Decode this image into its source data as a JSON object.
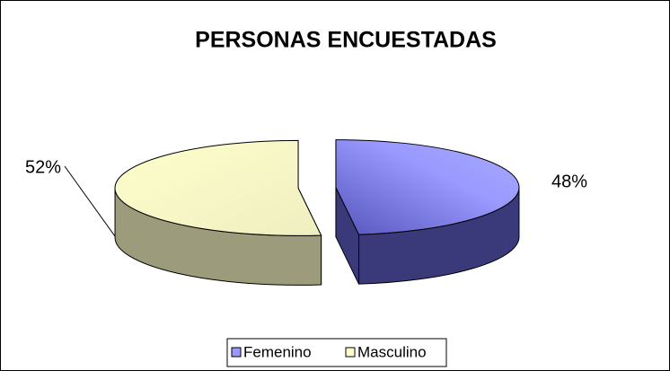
{
  "chart_data": {
    "type": "pie",
    "title": "PERSONAS ENCUESTADAS",
    "categories": [
      "Femenino",
      "Masculino"
    ],
    "values": [
      48,
      52
    ],
    "value_labels": [
      "48%",
      "52%"
    ],
    "colors": [
      "#9999ff",
      "#ffffcc"
    ],
    "legend": "bottom"
  }
}
